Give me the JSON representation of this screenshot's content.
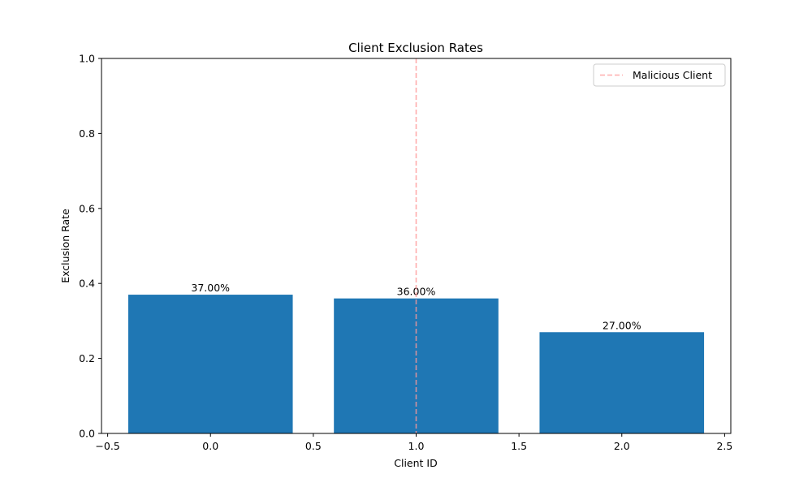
{
  "chart_data": {
    "type": "bar",
    "title": "Client Exclusion Rates",
    "xlabel": "Client ID",
    "ylabel": "Exclusion Rate",
    "x": [
      0,
      1,
      2
    ],
    "values": [
      0.37,
      0.36,
      0.27
    ],
    "data_labels": [
      "37.00%",
      "36.00%",
      "27.00%"
    ],
    "bar_color": "#1f77b4",
    "xlim": [
      -0.53,
      2.53
    ],
    "ylim": [
      0,
      1.0
    ],
    "x_ticks": [
      -0.5,
      0.0,
      0.5,
      1.0,
      1.5,
      2.0,
      2.5
    ],
    "x_tick_labels": [
      "−0.5",
      "0.0",
      "0.5",
      "1.0",
      "1.5",
      "2.0",
      "2.5"
    ],
    "y_ticks": [
      0.0,
      0.2,
      0.4,
      0.6,
      0.8,
      1.0
    ],
    "y_tick_labels": [
      "0.0",
      "0.2",
      "0.4",
      "0.6",
      "0.8",
      "1.0"
    ],
    "reference_line": {
      "x": 1,
      "label": "Malicious Client",
      "color": "#ff9999",
      "style": "dashed"
    },
    "legend": {
      "placement": "top-right",
      "entries": [
        "Malicious Client"
      ]
    },
    "grid": false
  }
}
